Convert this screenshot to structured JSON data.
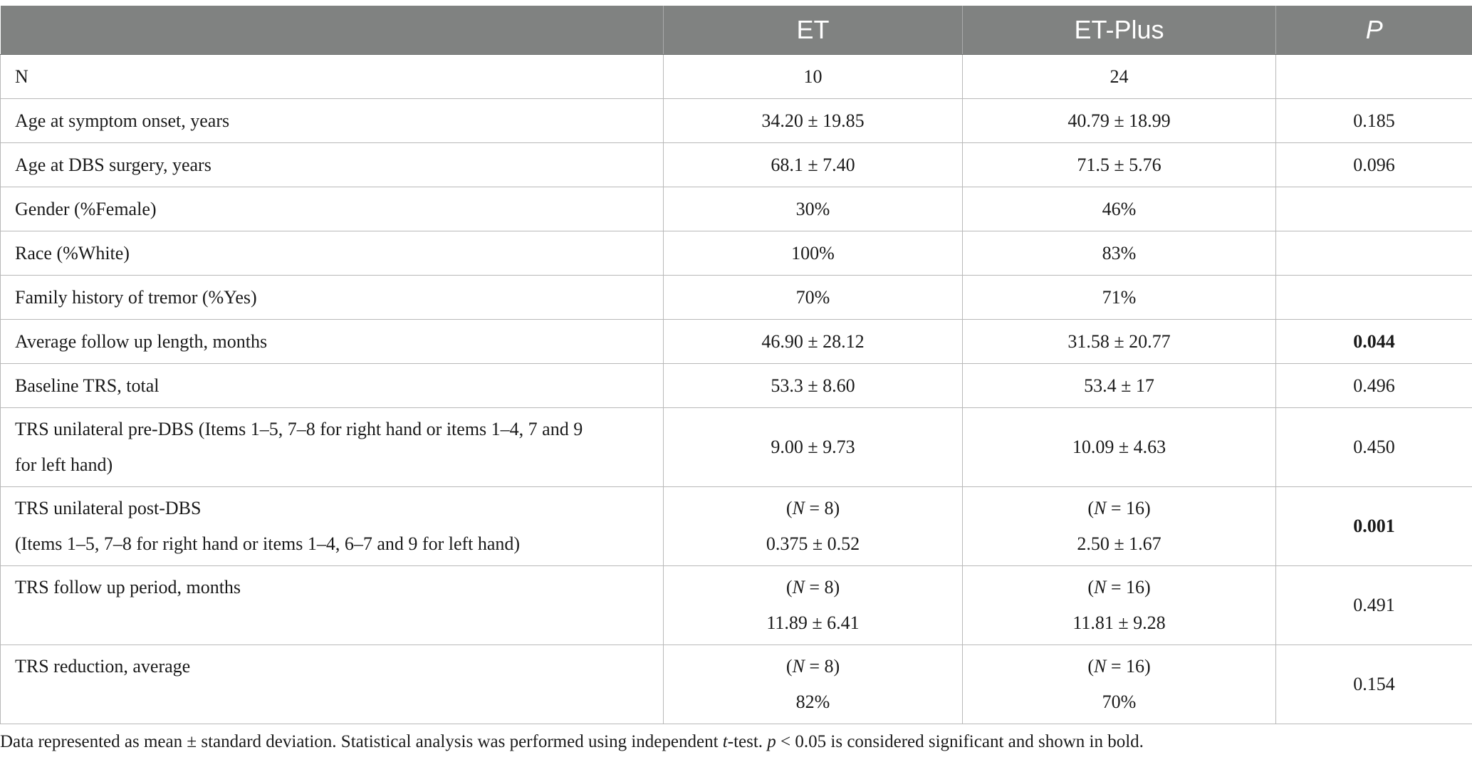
{
  "table": {
    "headers": [
      "",
      "ET",
      "ET-Plus",
      "P"
    ],
    "rows": [
      {
        "label": [
          "N"
        ],
        "et": [
          "10"
        ],
        "plus": [
          "24"
        ],
        "p": "",
        "p_bold": false
      },
      {
        "label": [
          "Age at symptom onset, years"
        ],
        "et": [
          "34.20 ± 19.85"
        ],
        "plus": [
          "40.79 ± 18.99"
        ],
        "p": "0.185",
        "p_bold": false
      },
      {
        "label": [
          "Age at DBS surgery, years"
        ],
        "et": [
          "68.1 ± 7.40"
        ],
        "plus": [
          "71.5 ± 5.76"
        ],
        "p": "0.096",
        "p_bold": false
      },
      {
        "label": [
          "Gender (%Female)"
        ],
        "et": [
          "30%"
        ],
        "plus": [
          "46%"
        ],
        "p": "",
        "p_bold": false
      },
      {
        "label": [
          "Race (%White)"
        ],
        "et": [
          "100%"
        ],
        "plus": [
          "83%"
        ],
        "p": "",
        "p_bold": false
      },
      {
        "label": [
          "Family history of tremor (%Yes)"
        ],
        "et": [
          "70%"
        ],
        "plus": [
          "71%"
        ],
        "p": "",
        "p_bold": false
      },
      {
        "label": [
          "Average follow up length, months"
        ],
        "et": [
          "46.90 ± 28.12"
        ],
        "plus": [
          "31.58 ± 20.77"
        ],
        "p": "0.044",
        "p_bold": true
      },
      {
        "label": [
          "Baseline TRS, total"
        ],
        "et": [
          "53.3 ± 8.60"
        ],
        "plus": [
          "53.4 ± 17"
        ],
        "p": "0.496",
        "p_bold": false
      },
      {
        "label": [
          "TRS unilateral pre-DBS (Items 1–5, 7–8 for right hand or items 1–4, 7 and 9",
          "for left hand)"
        ],
        "et": [
          "9.00 ± 9.73"
        ],
        "plus": [
          "10.09 ± 4.63"
        ],
        "p": "0.450",
        "p_bold": false
      },
      {
        "label": [
          "TRS unilateral post-DBS",
          "(Items 1–5, 7–8 for right hand or items 1–4, 6–7 and 9 for left hand)"
        ],
        "et": [
          "(N = 8)",
          "0.375 ± 0.52"
        ],
        "plus": [
          "(N = 16)",
          "2.50 ± 1.67"
        ],
        "p": "0.001",
        "p_bold": true
      },
      {
        "label": [
          "TRS follow up period, months"
        ],
        "et": [
          "(N = 8)",
          "11.89 ± 6.41"
        ],
        "plus": [
          "(N = 16)",
          "11.81 ± 9.28"
        ],
        "p": "0.491",
        "p_bold": false
      },
      {
        "label": [
          "TRS reduction, average"
        ],
        "et": [
          "(N = 8)",
          "82%"
        ],
        "plus": [
          "(N = 16)",
          "70%"
        ],
        "p": "0.154",
        "p_bold": false
      }
    ]
  },
  "footnote": {
    "part1": "Data represented as mean ± standard deviation. Statistical analysis was performed using independent ",
    "t": "t",
    "part2": "-test. ",
    "p": "p",
    "part3": " < 0.05 is considered significant and shown in bold."
  }
}
